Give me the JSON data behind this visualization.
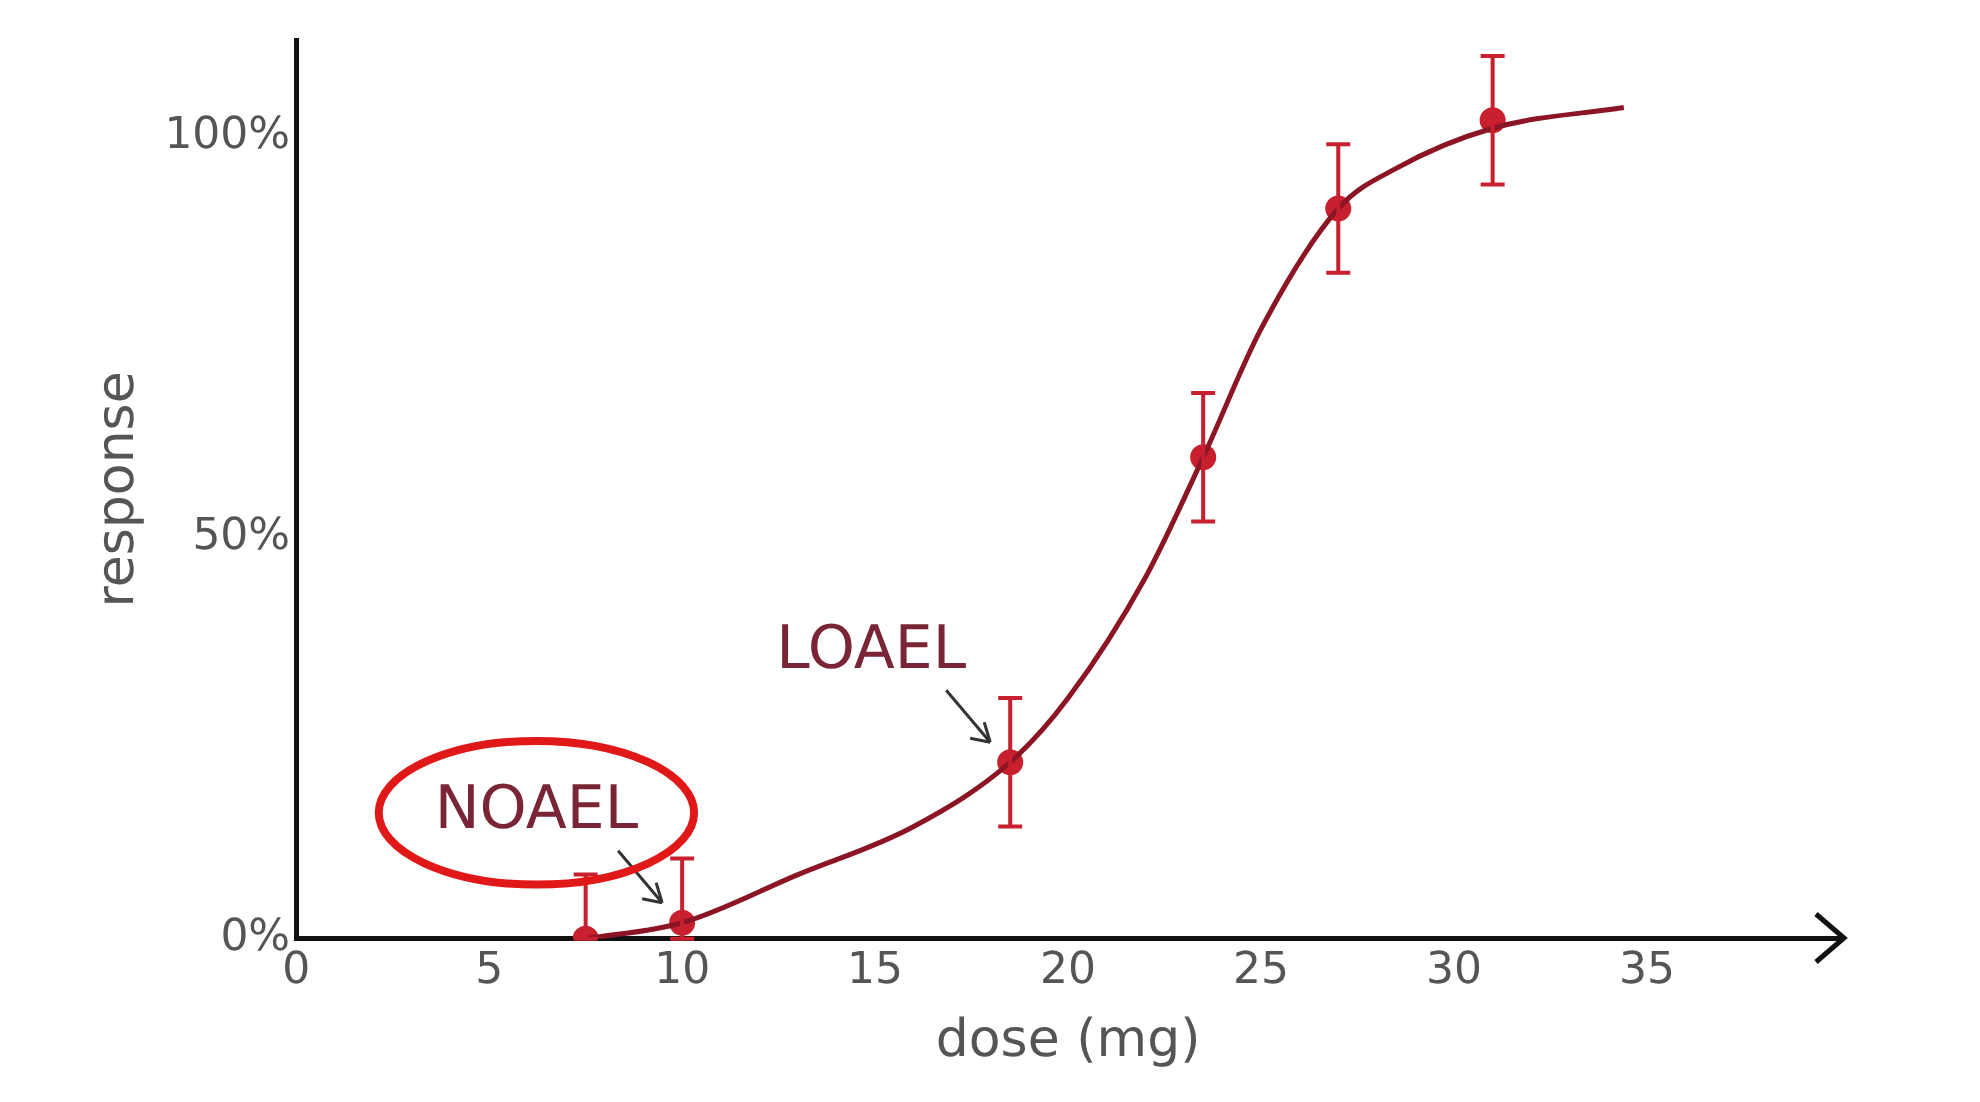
{
  "chart_data": {
    "type": "scatter",
    "xlabel": "dose (mg)",
    "ylabel": "response",
    "xlim": [
      0,
      40
    ],
    "xticks": [
      0,
      5,
      10,
      15,
      20,
      25,
      30,
      35
    ],
    "ylim": [
      0,
      112
    ],
    "yticks": [
      {
        "value": 0,
        "label": "0%"
      },
      {
        "value": 50,
        "label": "50%"
      },
      {
        "value": 100,
        "label": "100%"
      }
    ],
    "grid": false,
    "legend": false,
    "marker": "circle",
    "series": [
      {
        "type": "line",
        "color": "#8b1524",
        "marker": "none",
        "line_style": "solid",
        "x": [
          7.5,
          10,
          13,
          16,
          18.5,
          20,
          22,
          23.5,
          25,
          27,
          28.5,
          31,
          34.4
        ],
        "values": [
          0,
          2,
          8,
          14,
          22,
          30,
          45,
          60,
          76,
          91,
          96,
          101,
          103.6
        ]
      },
      {
        "type": "scatter",
        "color": "#c8202e",
        "x": [
          7.5,
          10,
          18.5,
          23.5,
          27,
          31
        ],
        "values": [
          0,
          2,
          22,
          60,
          91,
          102
        ],
        "errors": [
          [
            0,
            8
          ],
          [
            0,
            10
          ],
          8,
          8,
          8,
          8
        ]
      }
    ],
    "annotations": [
      {
        "text": "NOAEL",
        "x": 10,
        "y": 2
      },
      {
        "text": "LOAEL",
        "x": 18.5,
        "y": 22
      }
    ]
  }
}
